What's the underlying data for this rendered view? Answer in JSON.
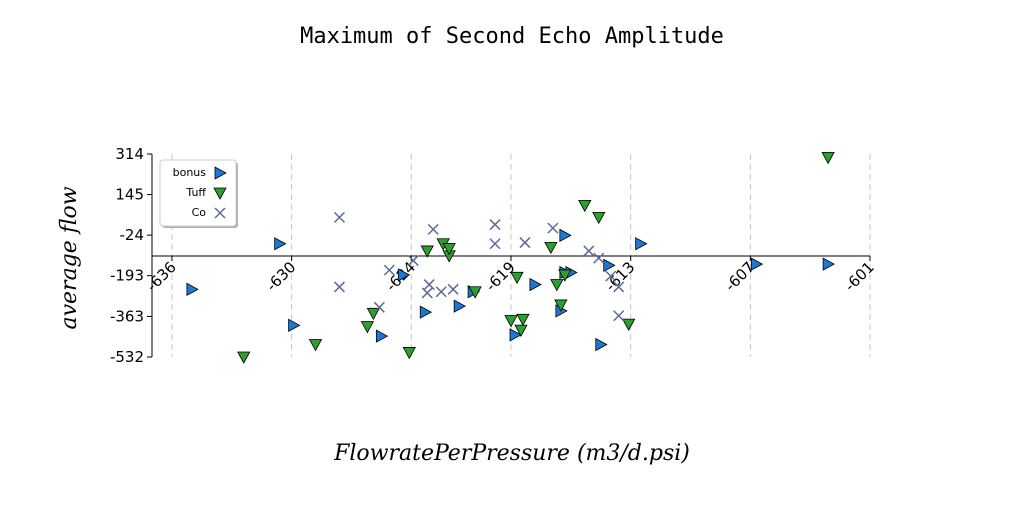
{
  "chart_data": {
    "type": "scatter",
    "title": "Maximum of Second Echo Amplitude",
    "xlabel": "FlowratePerPressure (m3/d.psi)",
    "ylabel": "average flow",
    "xlim": [
      -637,
      -601
    ],
    "ylim": [
      -532,
      314
    ],
    "x_ticks": [
      -636,
      -630,
      -624,
      -619,
      -613,
      -607,
      -601
    ],
    "x_tick_labels": [
      "-636",
      "-630",
      "-624",
      "-619",
      "-613",
      "-607",
      "-601"
    ],
    "y_ticks": [
      314,
      145,
      -24,
      -193,
      -363,
      -532
    ],
    "y_tick_labels": [
      "314",
      "145",
      "-24",
      "-193",
      "-363",
      "-532"
    ],
    "x_grid": true,
    "y_grid": false,
    "legend_position": "upper-left",
    "series": [
      {
        "name": "bonus",
        "marker": "triangle-right",
        "color": "#1f77d4",
        "points": [
          [
            -635,
            -250
          ],
          [
            -630.6,
            -60
          ],
          [
            -629.9,
            -400
          ],
          [
            -623.3,
            -345
          ],
          [
            -625.5,
            -445
          ],
          [
            -624.4,
            -190
          ],
          [
            -621.6,
            -320
          ],
          [
            -620.9,
            -260
          ],
          [
            -618.8,
            -440
          ],
          [
            -617.8,
            -230
          ],
          [
            -616.5,
            -340
          ],
          [
            -616.3,
            -180
          ],
          [
            -616.3,
            -25
          ],
          [
            -616,
            -180
          ],
          [
            -614.5,
            -480
          ],
          [
            -614.1,
            -150
          ],
          [
            -612.5,
            -60
          ],
          [
            -606.7,
            -145
          ],
          [
            -603.1,
            -145
          ]
        ]
      },
      {
        "name": "Tuff",
        "marker": "triangle-down",
        "color": "#2ca02c",
        "points": [
          [
            -632.4,
            -532
          ],
          [
            -628.8,
            -480
          ],
          [
            -626.2,
            -405
          ],
          [
            -625.9,
            -350
          ],
          [
            -624.1,
            -513
          ],
          [
            -623.2,
            -90
          ],
          [
            -622.4,
            -60
          ],
          [
            -622.1,
            -110
          ],
          [
            -622.1,
            -80
          ],
          [
            -620.8,
            -260
          ],
          [
            -619,
            -380
          ],
          [
            -618.7,
            -200
          ],
          [
            -618.5,
            -420
          ],
          [
            -618.4,
            -375
          ],
          [
            -617,
            -75
          ],
          [
            -616.7,
            -230
          ],
          [
            -616.5,
            -315
          ],
          [
            -616.3,
            -190
          ],
          [
            -615.3,
            100
          ],
          [
            -614.6,
            50
          ],
          [
            -613.1,
            -395
          ],
          [
            -603.1,
            300
          ]
        ]
      },
      {
        "name": "Co",
        "marker": "x",
        "color": "#5a6a9a",
        "points": [
          [
            -627.6,
            50
          ],
          [
            -627.6,
            -240
          ],
          [
            -625.6,
            -325
          ],
          [
            -625.1,
            -170
          ],
          [
            -623.9,
            -130
          ],
          [
            -623.2,
            -265
          ],
          [
            -623.1,
            -230
          ],
          [
            -622.9,
            0
          ],
          [
            -622.5,
            -260
          ],
          [
            -621.9,
            -250
          ],
          [
            -619.8,
            -60
          ],
          [
            -619.8,
            20
          ],
          [
            -618.3,
            -55
          ],
          [
            -616.9,
            5
          ],
          [
            -615.1,
            -90
          ],
          [
            -614.6,
            -120
          ],
          [
            -614,
            -195
          ],
          [
            -613.6,
            -240
          ],
          [
            -613.6,
            -360
          ]
        ]
      }
    ]
  }
}
